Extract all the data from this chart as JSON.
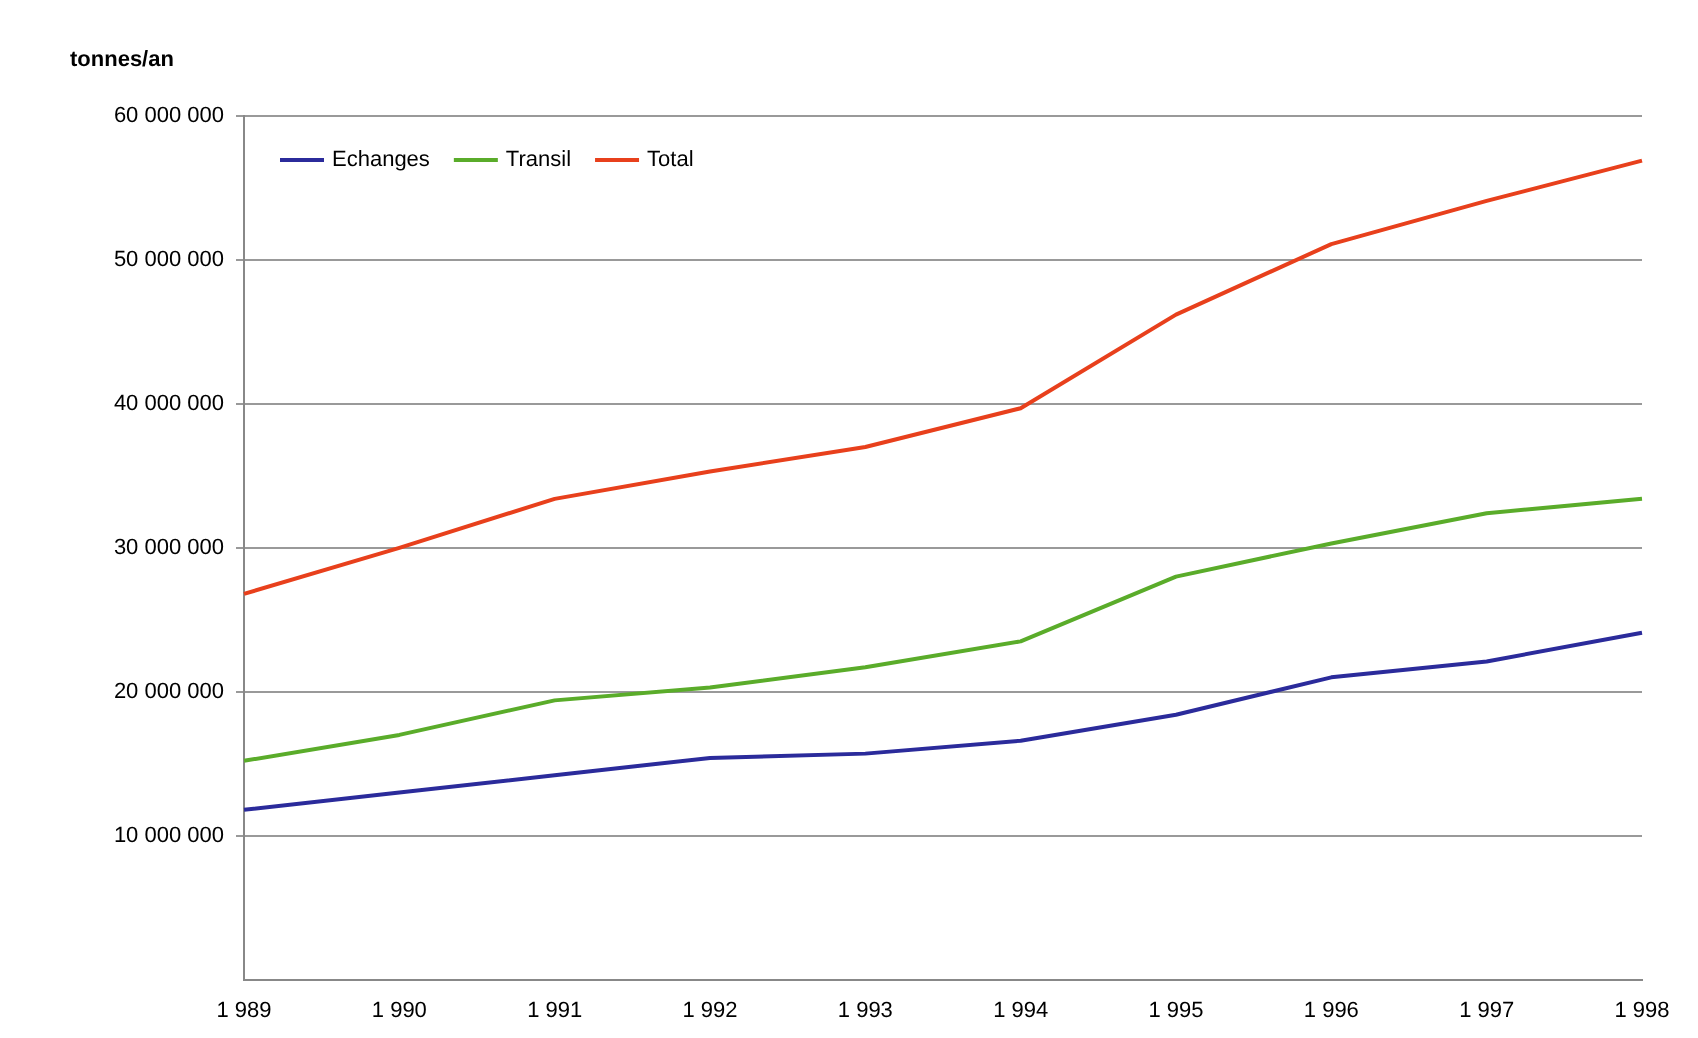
{
  "chart_data": {
    "type": "line",
    "ylabel": "tonnes/an",
    "categories": [
      "1 989",
      "1 990",
      "1 991",
      "1 992",
      "1 993",
      "1 994",
      "1 995",
      "1 996",
      "1 997",
      "1 998"
    ],
    "series": [
      {
        "name": "Echanges",
        "color": "#2b2b9b",
        "values": [
          11800000,
          13000000,
          14200000,
          15400000,
          15700000,
          16600000,
          18400000,
          21000000,
          22100000,
          24100000
        ]
      },
      {
        "name": "Transil",
        "color": "#5aac2a",
        "values": [
          15200000,
          17000000,
          19400000,
          20300000,
          21700000,
          23500000,
          28000000,
          30300000,
          32400000,
          33400000
        ]
      },
      {
        "name": "Total",
        "color": "#e8401c",
        "values": [
          26800000,
          30000000,
          33400000,
          35300000,
          37000000,
          39700000,
          46200000,
          51100000,
          54100000,
          56900000
        ]
      }
    ],
    "ylim": [
      0,
      60000000
    ],
    "yticks": [
      {
        "value": 10000000,
        "label": "10 000 000"
      },
      {
        "value": 20000000,
        "label": "20 000 000"
      },
      {
        "value": 30000000,
        "label": "30 000 000"
      },
      {
        "value": 40000000,
        "label": "40 000 000"
      },
      {
        "value": 50000000,
        "label": "50 000 000"
      },
      {
        "value": 60000000,
        "label": "60 000 000"
      }
    ],
    "grid": "y",
    "legend": "top left",
    "marker": "none",
    "line_style": "solid"
  }
}
